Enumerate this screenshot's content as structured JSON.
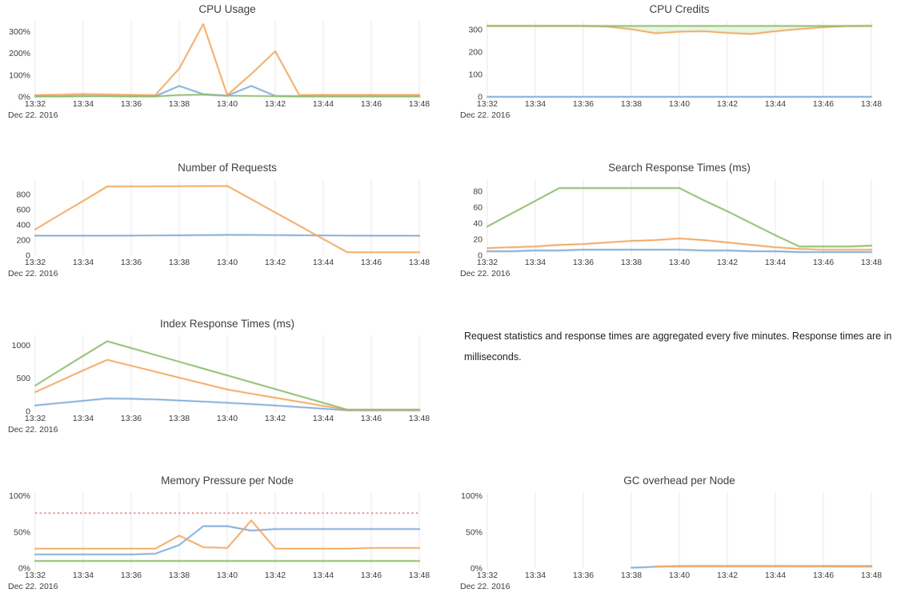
{
  "colors": {
    "blue": "#7ca9d6",
    "orange": "#f2a65c",
    "green": "#8abb6a",
    "red": "#ec8888",
    "grid": "#e8e8e8",
    "title_text": "#404040",
    "axis_text": "#3c3c3c",
    "credits_fill": "#e9f4e1"
  },
  "x_axis": {
    "tick_labels": [
      "13:32",
      "13:34",
      "13:36",
      "13:38",
      "13:40",
      "13:42",
      "13:44",
      "13:46",
      "13:48"
    ],
    "tick_indices": [
      0,
      2,
      4,
      6,
      8,
      10,
      12,
      14,
      16
    ],
    "points": 17,
    "date_label": "Dec 22. 2016"
  },
  "note": {
    "text": "Request statistics and response times are aggregated every five minutes. Response times are in milliseconds."
  },
  "chart_data": [
    {
      "type": "line",
      "title": "CPU Usage",
      "ylim": [
        0,
        350
      ],
      "ytick_values": [
        0,
        100,
        200,
        300
      ],
      "ytick_labels": [
        "0%",
        "100%",
        "200%",
        "300%"
      ],
      "series": [
        {
          "color": "blue",
          "values": [
            3,
            3,
            4,
            4,
            3,
            3,
            50,
            12,
            5,
            50,
            4,
            3,
            3,
            3,
            3,
            3,
            3
          ]
        },
        {
          "color": "green",
          "values": [
            2,
            2,
            3,
            3,
            2,
            2,
            8,
            10,
            5,
            4,
            3,
            2,
            2,
            2,
            2,
            2,
            2
          ]
        },
        {
          "color": "orange",
          "values": [
            8,
            10,
            13,
            11,
            9,
            8,
            130,
            335,
            8,
            105,
            210,
            8,
            9,
            9,
            9,
            9,
            9
          ]
        }
      ]
    },
    {
      "type": "line",
      "title": "CPU Credits",
      "ylim": [
        0,
        340
      ],
      "ytick_values": [
        0,
        100,
        200,
        300
      ],
      "ytick_labels": [
        "0",
        "100",
        "200",
        "300"
      ],
      "fill_between": {
        "upper": 2,
        "lower": 1,
        "color_key": "credits_fill"
      },
      "series": [
        {
          "color": "blue",
          "values": [
            0,
            0,
            0,
            0,
            0,
            0,
            0,
            0,
            0,
            0,
            0,
            0,
            0,
            0,
            0,
            0,
            0
          ]
        },
        {
          "color": "orange",
          "values": [
            317,
            317,
            317,
            317,
            317,
            314,
            302,
            284,
            291,
            293,
            286,
            281,
            293,
            303,
            311,
            316,
            317
          ]
        },
        {
          "color": "green",
          "values": [
            317,
            317,
            317,
            317,
            317,
            317,
            317,
            317,
            317,
            317,
            317,
            317,
            317,
            317,
            317,
            317,
            317
          ]
        }
      ]
    },
    {
      "type": "line",
      "title": "Number of Requests",
      "ylim": [
        0,
        1000
      ],
      "ytick_values": [
        0,
        200,
        400,
        600,
        800
      ],
      "ytick_labels": [
        "0",
        "200",
        "400",
        "600",
        "800"
      ],
      "series": [
        {
          "color": "blue",
          "values": [
            258,
            258,
            258,
            258,
            259,
            261,
            263,
            265,
            268,
            267,
            265,
            263,
            261,
            259,
            258,
            258,
            257
          ]
        },
        {
          "color": "orange",
          "values": [
            340,
            530,
            715,
            905,
            906,
            907,
            908,
            909,
            912,
            738,
            563,
            389,
            214,
            40,
            40,
            40,
            40
          ]
        }
      ]
    },
    {
      "type": "line",
      "title": "Search Response Times (ms)",
      "ylim": [
        0,
        95
      ],
      "ytick_values": [
        0,
        20,
        40,
        60,
        80
      ],
      "ytick_labels": [
        "0",
        "20",
        "40",
        "60",
        "80"
      ],
      "series": [
        {
          "color": "blue",
          "values": [
            5,
            5,
            6,
            6,
            7,
            7,
            7,
            7,
            7,
            6,
            6,
            5,
            5,
            4,
            4,
            4,
            4
          ]
        },
        {
          "color": "orange",
          "values": [
            9,
            10,
            11,
            13,
            14,
            16,
            18,
            19,
            21,
            19,
            16,
            13,
            10,
            8,
            7,
            7,
            7
          ]
        },
        {
          "color": "green",
          "values": [
            36,
            52,
            68,
            84,
            84,
            84,
            84,
            84,
            84,
            69,
            55,
            40,
            25,
            11,
            11,
            11,
            12
          ]
        }
      ]
    },
    {
      "type": "line",
      "title": "Index Response Times (ms)",
      "ylim": [
        0,
        1150
      ],
      "ytick_values": [
        0,
        500,
        1000
      ],
      "ytick_labels": [
        "0",
        "500",
        "1000"
      ],
      "series": [
        {
          "color": "blue",
          "values": [
            90,
            125,
            160,
            195,
            190,
            180,
            165,
            148,
            130,
            110,
            88,
            64,
            40,
            15,
            15,
            15,
            15
          ]
        },
        {
          "color": "orange",
          "values": [
            290,
            455,
            620,
            780,
            690,
            600,
            510,
            420,
            330,
            268,
            206,
            144,
            82,
            20,
            20,
            20,
            20
          ]
        },
        {
          "color": "green",
          "values": [
            390,
            615,
            840,
            1060,
            957,
            854,
            750,
            647,
            543,
            440,
            336,
            233,
            129,
            25,
            25,
            25,
            25
          ]
        }
      ]
    },
    {
      "type": "line",
      "title": "Memory Pressure per Node",
      "ylim": [
        0,
        105
      ],
      "ytick_values": [
        0,
        50,
        100
      ],
      "ytick_labels": [
        "0%",
        "50%",
        "100%"
      ],
      "threshold": {
        "value": 76,
        "color": "red",
        "style": "dotted"
      },
      "series": [
        {
          "color": "green",
          "values": [
            10,
            10,
            10,
            10,
            10,
            10,
            10,
            10,
            10,
            10,
            10,
            10,
            10,
            10,
            10,
            10,
            10
          ]
        },
        {
          "color": "blue",
          "values": [
            19,
            19,
            19,
            19,
            19,
            20,
            32,
            58,
            58,
            52,
            54,
            54,
            54,
            54,
            54,
            54,
            54
          ]
        },
        {
          "color": "orange",
          "values": [
            27,
            27,
            27,
            27,
            27,
            27,
            45,
            29,
            28,
            66,
            27,
            27,
            27,
            27,
            28,
            28,
            28
          ]
        }
      ]
    },
    {
      "type": "line",
      "title": "GC overhead per Node",
      "ylim": [
        0,
        105
      ],
      "ytick_values": [
        0,
        50,
        100
      ],
      "ytick_labels": [
        "0%",
        "50%",
        "100%"
      ],
      "series": [
        {
          "color": "blue",
          "values": [
            null,
            null,
            null,
            null,
            null,
            null,
            0.5,
            2,
            3,
            3,
            3,
            3,
            3,
            3,
            3,
            3,
            3
          ]
        },
        {
          "color": "orange",
          "values": [
            null,
            null,
            null,
            null,
            null,
            null,
            null,
            2.3,
            2.4,
            2.5,
            2.5,
            2.5,
            2.5,
            2.4,
            2.3,
            2.2,
            2.2
          ]
        }
      ]
    }
  ]
}
